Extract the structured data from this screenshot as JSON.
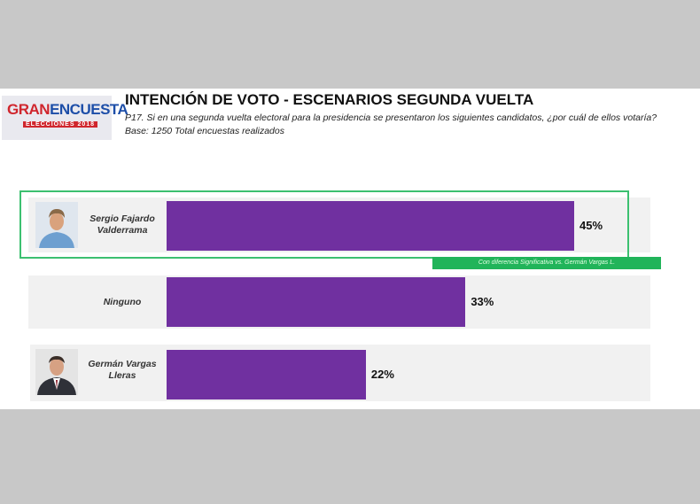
{
  "header": {
    "logo_main_a": "GRAN",
    "logo_main_b": "ENCUESTA",
    "logo_sub": "ELECCIONES 2018",
    "title": "INTENCIÓN DE VOTO - ESCENARIOS SEGUNDA VUELTA",
    "question": "P17. Si en una segunda vuelta electoral para la presidencia se presentaron los siguientes candidatos, ¿por cuál de ellos votaría?",
    "base": "Base: 1250 Total encuestas realizados"
  },
  "badge_text": "Con diferencia Significativa vs. Germán Vargas L.",
  "colors": {
    "bar": "#7030a0",
    "highlight": "#3cc070",
    "badge": "#21b45a"
  },
  "chart_data": {
    "type": "bar",
    "orientation": "horizontal",
    "categories": [
      "Sergio Fajardo Valderrama",
      "Ninguno",
      "Germán Vargas Lleras"
    ],
    "values": [
      45,
      33,
      22
    ],
    "value_labels": [
      "45%",
      "33%",
      "22%"
    ],
    "title": "INTENCIÓN DE VOTO - ESCENARIOS SEGUNDA VUELTA",
    "xlim": [
      0,
      45
    ],
    "grid": false,
    "legend": "none"
  },
  "rows": [
    {
      "name_line1": "Sergio Fajardo",
      "name_line2": "Valderrama",
      "value_label": "45%"
    },
    {
      "name_line1": "Ninguno",
      "name_line2": "",
      "value_label": "33%"
    },
    {
      "name_line1": "Germán Vargas",
      "name_line2": "Lleras",
      "value_label": "22%"
    }
  ]
}
